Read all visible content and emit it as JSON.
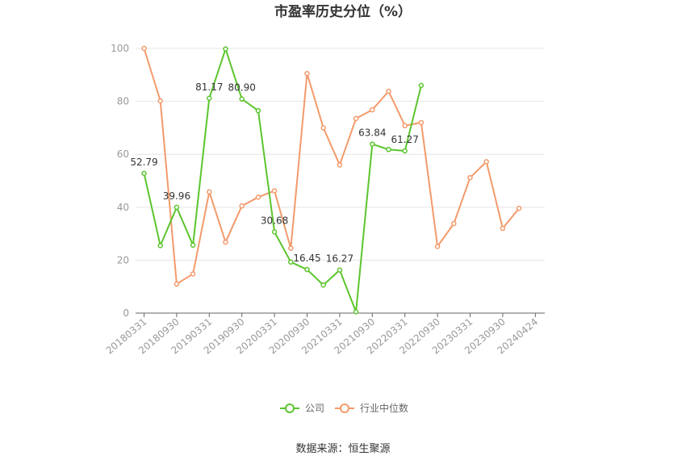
{
  "chart_data": {
    "type": "line",
    "title": "市盈率历史分位（%）",
    "source": "数据来源：恒生聚源",
    "x": [
      "20180331",
      "20180630",
      "20180930",
      "20181231",
      "20190331",
      "20190630",
      "20190930",
      "20191231",
      "20200331",
      "20200630",
      "20200930",
      "20201231",
      "20210331",
      "20210630",
      "20210930",
      "20211231",
      "20220331",
      "20220630",
      "20220930",
      "20221231",
      "20230331",
      "20230630",
      "20230930",
      "20231231",
      "20240424"
    ],
    "tick_labels": [
      "20180331",
      "20180930",
      "20190331",
      "20190930",
      "20200331",
      "20200930",
      "20210331",
      "20210930",
      "20220331",
      "20220930",
      "20230331",
      "20230930",
      "20240424"
    ],
    "ylim": [
      0,
      100
    ],
    "yticks": [
      0,
      20,
      40,
      60,
      80,
      100
    ],
    "grid": true,
    "legend_position": "bottom",
    "series": [
      {
        "name": "公司",
        "color": "#5cc52e",
        "values": [
          52.79,
          25.5,
          39.96,
          25.7,
          81.17,
          99.8,
          80.9,
          76.5,
          30.68,
          19.3,
          16.45,
          10.6,
          16.27,
          0.5,
          63.84,
          61.8,
          61.27,
          86.0,
          null,
          null,
          null,
          null,
          null,
          null,
          null
        ],
        "labeled_indices": [
          0,
          2,
          4,
          6,
          8,
          10,
          12,
          14,
          16
        ]
      },
      {
        "name": "行业中位数",
        "color": "#f39a6b",
        "values": [
          100,
          80.2,
          11.0,
          14.8,
          45.8,
          26.8,
          40.5,
          43.8,
          46.2,
          24.5,
          90.5,
          70.0,
          56.0,
          73.5,
          76.8,
          83.8,
          70.8,
          72.0,
          25.2,
          33.8,
          51.2,
          57.2,
          32.0,
          39.6,
          null
        ]
      }
    ]
  }
}
